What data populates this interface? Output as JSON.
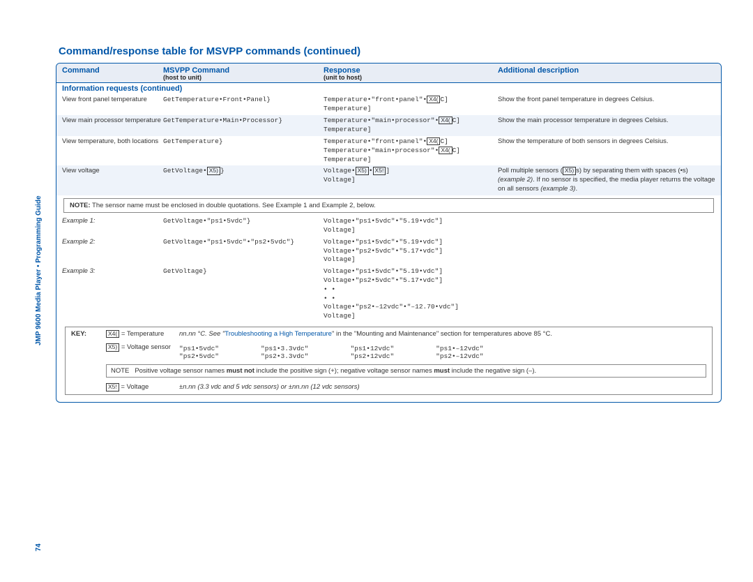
{
  "title": "Command/response table for MSVPP commands (continued)",
  "headers": {
    "c1": "Command",
    "c2": "MSVPP Command",
    "c2sub": "(host to unit)",
    "c3": "Response",
    "c3sub": "(unit to host)",
    "c4": "Additional description"
  },
  "section": "Information requests (continued)",
  "rows": [
    {
      "cmd": "View front panel temperature",
      "msvpp": "GetTemperature•Front•Panel}",
      "resp": "Temperature•\"front•panel\"•X4C]\nTemperature]",
      "desc": "Show the front panel temperature in degrees Celsius.",
      "alt": false
    },
    {
      "cmd": "View main processor temperature",
      "msvpp": "GetTemperature•Main•Processor}",
      "resp": "Temperature•\"main•processor\"•X4C]\nTemperature]",
      "desc": "Show the main processor temperature in degrees Celsius.",
      "alt": true
    },
    {
      "cmd": "View temperature, both locations",
      "msvpp": "GetTemperature}",
      "resp": "Temperature•\"front•panel\"•X4C]\nTemperature•\"main•processor\"•X4C]\nTemperature]",
      "desc": "Show the temperature of both sensors in degrees Celsius.",
      "alt": false
    },
    {
      "cmd": "View voltage",
      "msvpp": "GetVoltage•X5)}",
      "resp": "Voltage•X5•X5!]\nVoltage]",
      "desc": "Poll multiple sensors (X5s) by separating them with spaces (•s) (example 2). If no sensor is specified, the media player returns the voltage on all sensors (example 3).",
      "alt": true
    }
  ],
  "note1": "The sensor name must be enclosed in double quotations. See Example 1 and Example 2, below.",
  "examples": [
    {
      "label": "Example 1:",
      "msvpp": "GetVoltage•\"ps1•5vdc\"}",
      "resp": "Voltage•\"ps1•5vdc\"•\"5.19•vdc\"]\nVoltage]"
    },
    {
      "label": "Example 2:",
      "msvpp": "GetVoltage•\"ps1•5vdc\"•\"ps2•5vdc\"}",
      "resp": "Voltage•\"ps1•5vdc\"•\"5.19•vdc\"]\nVoltage•\"ps2•5vdc\"•\"5.17•vdc\"]\nVoltage]"
    },
    {
      "label": "Example 3:",
      "msvpp": "GetVoltage}",
      "resp": "Voltage•\"ps1•5vdc\"•\"5.19•vdc\"]\nVoltage•\"ps2•5vdc\"•\"5.17•vdc\"]\n  •    •\n  •    •\nVoltage•\"ps2•–12vdc\"•\"–12.70•vdc\"]\nVoltage]"
    }
  ],
  "key": {
    "lead": "KEY:",
    "x4": {
      "v": "X4(",
      "def": "= Temperature",
      "right": "nn.nn °C. See \"",
      "link": "Troubleshooting a High Temperature",
      "right2": "\" in the \"Mounting and Maintenance\" section for temperatures above 85 °C."
    },
    "x5": {
      "v": "X5)",
      "def": "= Voltage sensor"
    },
    "sensors": {
      "a": [
        "\"ps1•5vdc\"",
        "\"ps2•5vdc\""
      ],
      "b": [
        "\"ps1•3.3vdc\"",
        "\"ps2•3.3vdc\""
      ],
      "c": [
        "\"ps1•12vdc\"",
        "\"ps2•12vdc\""
      ],
      "d": [
        "\"ps1•–12vdc\"",
        "\"ps2•–12vdc\""
      ]
    },
    "note": "Positive voltage sensor names must not include the positive sign (+); negative voltage sensor names must include the negative sign (–).",
    "noteLbl": "NOTE",
    "x5b": {
      "v": "X5!",
      "def": "= Voltage",
      "right": "±n.nn (3.3 vdc and 5 vdc sensors) or ±nn.nn (12 vdc sensors)"
    }
  },
  "sidebar": "JMP 9600 Media Player • Programming Guide",
  "pageNum": "74",
  "noteLabel": "NOTE:"
}
